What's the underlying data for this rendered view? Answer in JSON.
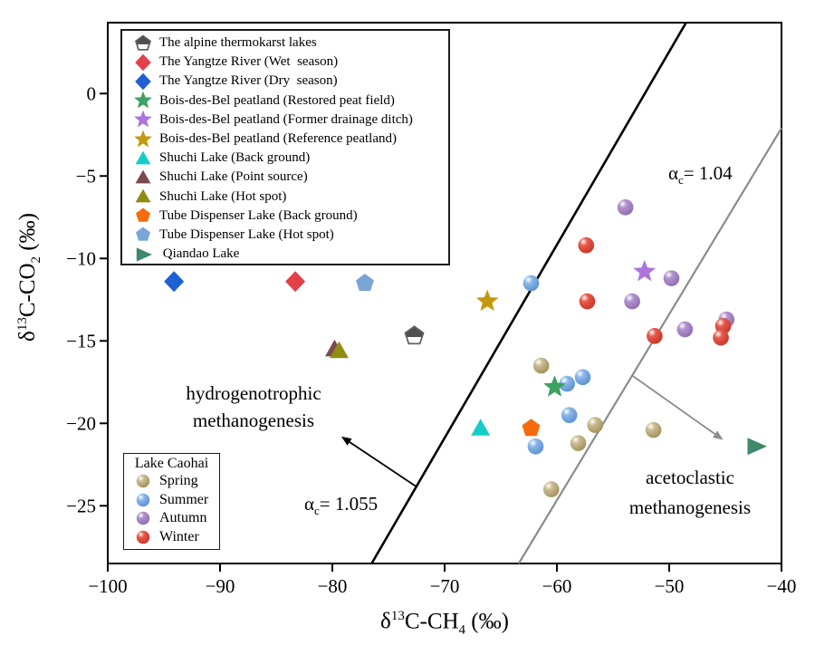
{
  "figure": {
    "background": "#ffffff",
    "frame_color": "#000000"
  },
  "chart_data": {
    "type": "scatter",
    "xlabel": "δ¹³C-CH₄ (‰)",
    "ylabel": "δ¹³C-CO₂ (‰)",
    "grid": false,
    "axes": {
      "x": {
        "prefix": "δ",
        "sup": "13",
        "main": "C-CH",
        "sub": "4",
        "suffix": " (‰)",
        "lim": [
          -100,
          -40
        ],
        "tick_values": [
          -100,
          -90,
          -80,
          -70,
          -60,
          -50,
          -40
        ],
        "tick_labels": [
          "−100",
          "−90",
          "−80",
          "−70",
          "−60",
          "−50",
          "−40"
        ]
      },
      "y": {
        "prefix": "δ",
        "sup": "13",
        "main": "C-CO",
        "sub": "2",
        "suffix": " (‰)",
        "lim": [
          -28.5,
          4.3
        ],
        "tick_values": [
          0,
          -5,
          -10,
          -15,
          -20,
          -25
        ],
        "tick_labels": [
          "0",
          "−5",
          "−10",
          "−15",
          "−20",
          "−25"
        ]
      }
    },
    "series_order": [
      "spring",
      "summer",
      "autumn",
      "winter",
      "shuchi_point",
      "shuchi_hot",
      "alpine",
      "yangtze_wet",
      "yangtze_dry",
      "bdb_reference",
      "tube_hot",
      "shuchi_bg",
      "tube_bg",
      "bdb_restored",
      "bdb_former",
      "qiandao"
    ],
    "series": {
      "alpine": {
        "marker": "pentagon-half",
        "color": "#4f4f4f",
        "stroke": "#5f5f5f",
        "points": [
          [
            -72.7,
            -14.7
          ]
        ]
      },
      "yangtze_wet": {
        "marker": "diamond",
        "color": "#e2414a",
        "points": [
          [
            -83.3,
            -11.4
          ]
        ]
      },
      "yangtze_dry": {
        "marker": "diamond",
        "color": "#1c60d2",
        "points": [
          [
            -94.1,
            -11.4
          ]
        ]
      },
      "bdb_restored": {
        "marker": "star",
        "color": "#3aa360",
        "points": [
          [
            -60.2,
            -17.8
          ]
        ]
      },
      "bdb_former": {
        "marker": "star",
        "color": "#ad74de",
        "points": [
          [
            -52.2,
            -10.8
          ]
        ]
      },
      "bdb_reference": {
        "marker": "star",
        "color": "#c3980f",
        "points": [
          [
            -66.2,
            -12.6
          ]
        ]
      },
      "shuchi_bg": {
        "marker": "triangle",
        "color": "#15cdc8",
        "points": [
          [
            -66.8,
            -20.3
          ]
        ]
      },
      "shuchi_point": {
        "marker": "triangle",
        "color": "#7b4a4a",
        "points": [
          [
            -79.8,
            -15.5
          ]
        ]
      },
      "shuchi_hot": {
        "marker": "triangle",
        "color": "#8e8c13",
        "points": [
          [
            -79.4,
            -15.6
          ]
        ]
      },
      "tube_bg": {
        "marker": "pentagon",
        "color": "#f66c0d",
        "points": [
          [
            -62.3,
            -20.3
          ]
        ]
      },
      "tube_hot": {
        "marker": "pentagon",
        "color": "#7ba5d7",
        "points": [
          [
            -77.1,
            -11.5
          ]
        ]
      },
      "qiandao": {
        "marker": "triangle-right",
        "color": "#3f8a68",
        "points": [
          [
            -42.3,
            -21.4
          ]
        ]
      },
      "spring": {
        "marker": "sphere",
        "color": "#cbbc92",
        "dark": "#a3925f",
        "points": [
          [
            -61.4,
            -16.5
          ],
          [
            -56.6,
            -20.1
          ],
          [
            -58.1,
            -21.2
          ],
          [
            -60.5,
            -24.0
          ],
          [
            -51.4,
            -20.4
          ]
        ]
      },
      "summer": {
        "marker": "sphere",
        "color": "#8ab7e9",
        "dark": "#5d92d2",
        "points": [
          [
            -62.3,
            -11.5
          ],
          [
            -59.1,
            -17.6
          ],
          [
            -57.7,
            -17.2
          ],
          [
            -58.9,
            -19.5
          ],
          [
            -61.9,
            -21.4
          ]
        ]
      },
      "autumn": {
        "marker": "sphere",
        "color": "#b292cd",
        "dark": "#8f6fb0",
        "points": [
          [
            -53.9,
            -6.9
          ],
          [
            -53.3,
            -12.6
          ],
          [
            -49.8,
            -11.2
          ],
          [
            -48.6,
            -14.3
          ],
          [
            -44.9,
            -13.7
          ]
        ]
      },
      "winter": {
        "marker": "sphere",
        "color": "#e75b4e",
        "dark": "#c93527",
        "points": [
          [
            -57.4,
            -9.2
          ],
          [
            -57.3,
            -12.6
          ],
          [
            -51.3,
            -14.7
          ],
          [
            -45.2,
            -14.1
          ],
          [
            -45.4,
            -14.8
          ]
        ]
      }
    },
    "lines": [
      {
        "name": "alpha-1055",
        "color": "#000000",
        "width": 2.6,
        "x": [
          -76.5,
          -48.5
        ],
        "y": [
          -28.5,
          4.3
        ]
      },
      {
        "name": "alpha-104",
        "color": "#8c8c8c",
        "width": 2.2,
        "x": [
          -63.4,
          -40.0
        ],
        "y": [
          -28.5,
          -2.1
        ]
      }
    ],
    "arrows": [
      {
        "name": "hydrogenotrophic",
        "color": "#000000",
        "from": [
          -72.6,
          -23.8
        ],
        "to": [
          -79.2,
          -20.8
        ]
      },
      {
        "name": "acetoclastic",
        "color": "#8c8c8c",
        "from": [
          -53.3,
          -17.1
        ],
        "to": [
          -45.2,
          -21.0
        ]
      }
    ]
  },
  "annotations": {
    "hydro": {
      "line1": "hydrogenotrophic",
      "line2": "methanogenesis"
    },
    "aceto": {
      "line1": "acetoclastic",
      "line2": "methanogenesis"
    },
    "a1055": {
      "sym": "α",
      "sub": "c",
      "rest": "= 1.055"
    },
    "a104": {
      "sym": "α",
      "sub": "c",
      "rest": "= 1.04"
    }
  },
  "legend_main": {
    "items": [
      {
        "series": "alpine",
        "label": "The alpine thermokarst lakes"
      },
      {
        "series": "yangtze_wet",
        "label": "The Yangtze River (Wet  season)"
      },
      {
        "series": "yangtze_dry",
        "label": "The Yangtze River (Dry  season)"
      },
      {
        "series": "bdb_restored",
        "label": "Bois-des-Bel peatland (Restored peat field)"
      },
      {
        "series": "bdb_former",
        "label": "Bois-des-Bel peatland (Former drainage ditch)"
      },
      {
        "series": "bdb_reference",
        "label": "Bois-des-Bel peatland (Reference peatland)"
      },
      {
        "series": "shuchi_bg",
        "label": "Shuchi Lake (Back ground)"
      },
      {
        "series": "shuchi_point",
        "label": "Shuchi Lake (Point source)"
      },
      {
        "series": "shuchi_hot",
        "label": "Shuchi Lake (Hot spot)"
      },
      {
        "series": "tube_bg",
        "label": "Tube Dispenser Lake (Back ground)"
      },
      {
        "series": "tube_hot",
        "label": "Tube Dispenser Lake (Hot spot)"
      },
      {
        "series": "qiandao",
        "label": " Qiandao Lake"
      }
    ]
  },
  "legend_caohai": {
    "title": "Lake Caohai",
    "items": [
      {
        "series": "spring",
        "label": "Spring"
      },
      {
        "series": "summer",
        "label": "Summer"
      },
      {
        "series": "autumn",
        "label": "Autumn"
      },
      {
        "series": "winter",
        "label": "Winter"
      }
    ]
  }
}
